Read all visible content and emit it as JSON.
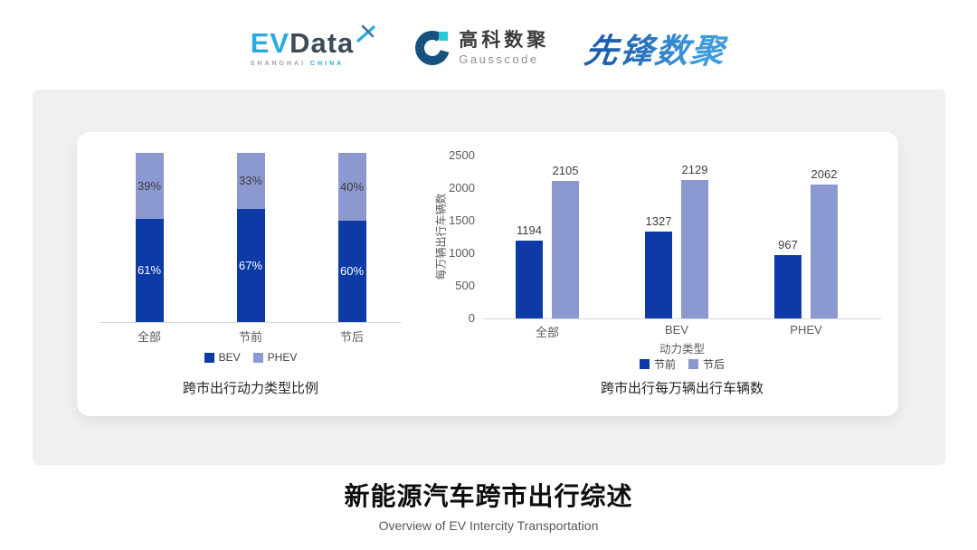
{
  "header": {
    "evdata": {
      "ev": "EV",
      "data": "Data",
      "sub_shanghai": "SHANGHAI",
      "sub_china": "CHINA",
      "ev_color": "#29abe2",
      "data_color": "#3e4a5a"
    },
    "gausscode": {
      "name_cn": "高科数聚",
      "name_en": "Gausscode",
      "mark_color": "#16527e",
      "accent_color": "#2bc8d8"
    },
    "pioneer": {
      "name": "先锋数聚",
      "color": "#2a7cc9"
    }
  },
  "chart_data": [
    {
      "type": "bar",
      "variant": "stacked-percent",
      "title": "跨市出行动力类型比例",
      "categories": [
        "全部",
        "节前",
        "节后"
      ],
      "series": [
        {
          "name": "BEV",
          "values": [
            61,
            67,
            60
          ],
          "labels": [
            "61%",
            "67%",
            "60%"
          ],
          "color": "#0d3aa6"
        },
        {
          "name": "PHEV",
          "values": [
            39,
            33,
            40
          ],
          "labels": [
            "39%",
            "33%",
            "40%"
          ],
          "color": "#8c99d0"
        }
      ],
      "ylim": [
        0,
        100
      ],
      "grid": false,
      "legend_position": "bottom"
    },
    {
      "type": "bar",
      "variant": "grouped",
      "title": "跨市出行每万辆出行车辆数",
      "xlabel": "动力类型",
      "ylabel": "每万辆出行车辆数",
      "categories": [
        "全部",
        "BEV",
        "PHEV"
      ],
      "series": [
        {
          "name": "节前",
          "values": [
            1194,
            1327,
            967
          ],
          "color": "#0d3aa6"
        },
        {
          "name": "节后",
          "values": [
            2105,
            2129,
            2062
          ],
          "color": "#8c99d0"
        }
      ],
      "ylim": [
        0,
        2500
      ],
      "yticks": [
        0,
        500,
        1000,
        1500,
        2000,
        2500
      ],
      "grid": false,
      "legend_position": "bottom"
    }
  ],
  "footer": {
    "title": "新能源汽车跨市出行综述",
    "subtitle": "Overview of EV Intercity Transportation"
  }
}
